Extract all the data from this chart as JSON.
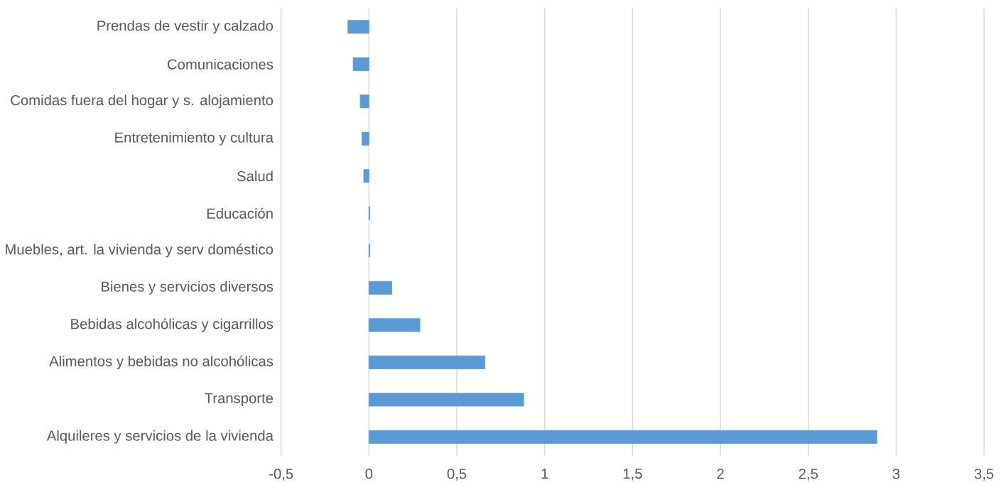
{
  "chart_data": {
    "type": "bar",
    "orientation": "horizontal",
    "categories": [
      "Prendas de vestir y calzado",
      "Comunicaciones",
      "Comidas fuera del hogar y s. alojamiento",
      "Entretenimiento y cultura",
      "Salud",
      "Educación",
      "Muebles, art. la vivienda y serv doméstico",
      "Bienes y servicios diversos",
      "Bebidas alcohólicas y cigarrillos",
      "Alimentos y bebidas no alcohólicas",
      "Transporte",
      "Alquileres y servicios de la vivienda"
    ],
    "values": [
      -0.12,
      -0.09,
      -0.05,
      -0.04,
      -0.03,
      0.005,
      0.005,
      0.13,
      0.29,
      0.66,
      0.88,
      2.89
    ],
    "color": "#5b9bd5",
    "xlim": [
      -0.5,
      3.5
    ],
    "xticks": [
      {
        "value": -0.5,
        "label": "-0,5"
      },
      0,
      {
        "value": 0.5,
        "label": "0,5"
      },
      1,
      {
        "value": 1.5,
        "label": "1,5"
      },
      2,
      {
        "value": 2.5,
        "label": "2,5"
      },
      3,
      {
        "value": 3.5,
        "label": "3,5"
      }
    ],
    "grid": "x"
  }
}
